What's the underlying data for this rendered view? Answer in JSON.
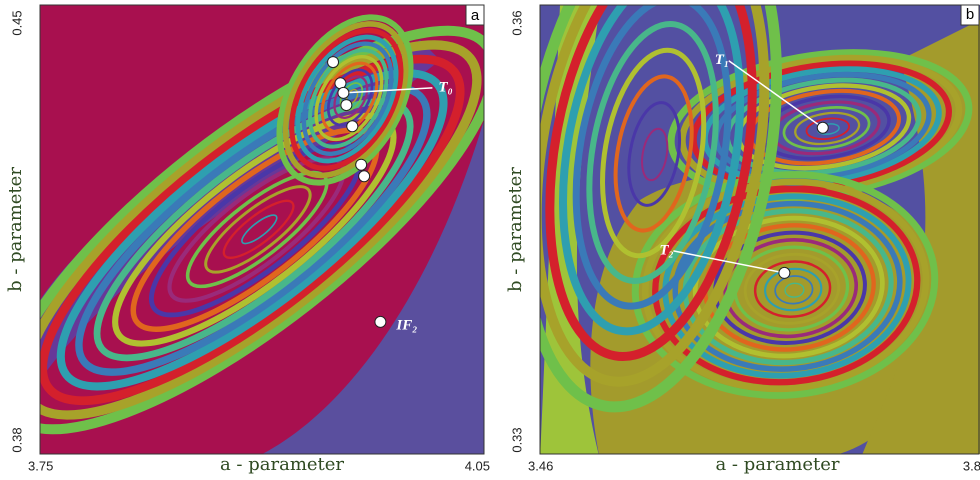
{
  "chart_data": [
    {
      "type": "scatter",
      "panel": "a",
      "xlabel": "a - parameter",
      "ylabel": "b - parameter",
      "xlim": [
        3.75,
        4.05
      ],
      "ylim": [
        0.38,
        0.45
      ],
      "xticks": [
        3.75,
        4.05
      ],
      "yticks": [
        0.38,
        0.45
      ],
      "x": [
        3.948,
        3.953,
        3.955,
        3.957,
        3.961,
        3.967,
        3.969,
        3.98
      ],
      "y": [
        0.4411,
        0.4378,
        0.4363,
        0.4344,
        0.4311,
        0.4251,
        0.4233,
        0.4006
      ],
      "point_labels": [
        null,
        null,
        "T₀",
        null,
        null,
        null,
        null,
        "IF₂"
      ],
      "color": "#ffffff"
    },
    {
      "type": "scatter",
      "panel": "b",
      "xlabel": "a - parameter",
      "ylabel": "b - parameter",
      "xlim": [
        3.46,
        3.8
      ],
      "ylim": [
        0.33,
        0.36
      ],
      "xticks": [
        3.46,
        3.8
      ],
      "yticks": [
        0.33,
        0.36
      ],
      "x": [
        3.681,
        3.651
      ],
      "y": [
        0.3518,
        0.3421
      ],
      "point_labels": [
        "T₁",
        "T₂"
      ],
      "color": "#ffffff"
    }
  ]
}
